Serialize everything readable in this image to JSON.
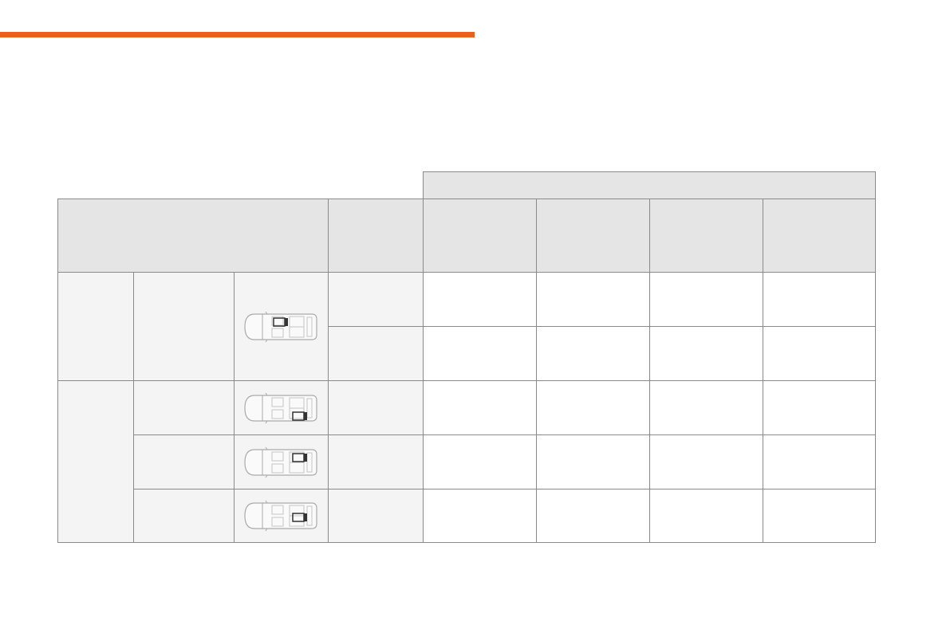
{
  "colors": {
    "accent_bar": "#e8601c",
    "header_fill": "#e5e5e5",
    "label_fill": "#f4f4f4",
    "grid": "#8a8a8a"
  },
  "table": {
    "rows": [
      {
        "car_icon": "car-top-view-front-passenger-seat-icon",
        "seat": "front-right"
      },
      {
        "car_icon": "car-top-view-rear-left-seat-icon",
        "seat": "rear-bottom"
      },
      {
        "car_icon": "car-top-view-rear-right-seat-icon",
        "seat": "rear-top"
      },
      {
        "car_icon": "car-top-view-rear-centre-seat-icon",
        "seat": "rear-centre"
      }
    ]
  }
}
